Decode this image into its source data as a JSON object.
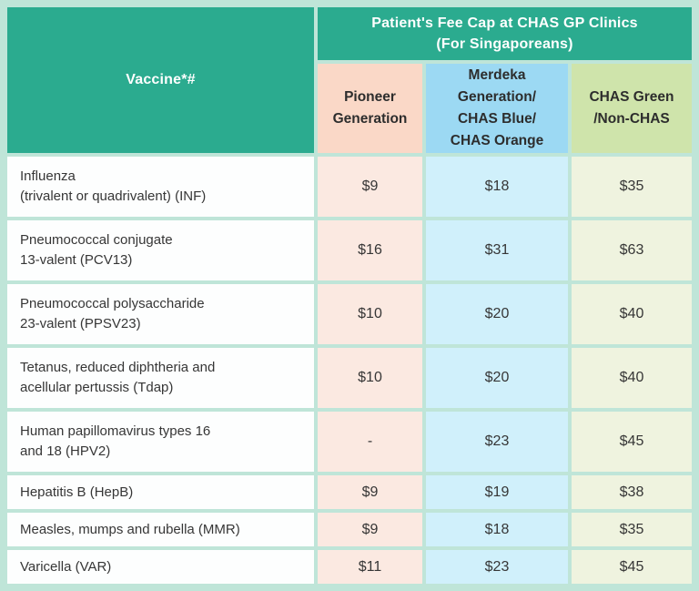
{
  "chart_data": {
    "type": "table",
    "title": "Patient's Fee Cap at CHAS GP Clinics (For Singaporeans)",
    "row_header": "Vaccine*#",
    "columns": [
      "Pioneer Generation",
      "Merdeka Generation/ CHAS Blue/ CHAS Orange",
      "CHAS Green /Non-CHAS"
    ],
    "rows": [
      {
        "vaccine": "Influenza (trivalent or quadrivalent) (INF)",
        "values": [
          "$9",
          "$18",
          "$35"
        ]
      },
      {
        "vaccine": "Pneumococcal conjugate 13-valent (PCV13)",
        "values": [
          "$16",
          "$31",
          "$63"
        ]
      },
      {
        "vaccine": "Pneumococcal polysaccharide 23-valent (PPSV23)",
        "values": [
          "$10",
          "$20",
          "$40"
        ]
      },
      {
        "vaccine": "Tetanus, reduced diphtheria and acellular pertussis (Tdap)",
        "values": [
          "$10",
          "$20",
          "$40"
        ]
      },
      {
        "vaccine": "Human papillomavirus types 16 and 18 (HPV2)",
        "values": [
          "-",
          "$23",
          "$45"
        ]
      },
      {
        "vaccine": "Hepatitis B (HepB)",
        "values": [
          "$9",
          "$19",
          "$38"
        ]
      },
      {
        "vaccine": "Measles, mumps and rubella (MMR)",
        "values": [
          "$9",
          "$18",
          "$35"
        ]
      },
      {
        "vaccine": "Varicella  (VAR)",
        "values": [
          "$11",
          "$23",
          "$45"
        ]
      }
    ]
  },
  "table": {
    "title": "Patient's Fee Cap at CHAS GP Clinics\n(For Singaporeans)",
    "vaccine_header": "Vaccine*#",
    "columns": [
      {
        "label": "Pioneer\nGeneration"
      },
      {
        "label": "Merdeka\nGeneration/\nCHAS Blue/\nCHAS Orange"
      },
      {
        "label": "CHAS Green\n/Non-CHAS"
      }
    ],
    "rows": [
      {
        "vaccine": "Influenza\n(trivalent or quadrivalent) (INF)",
        "pioneer": "$9",
        "merdeka": "$18",
        "chas_green": "$35"
      },
      {
        "vaccine": "Pneumococcal conjugate\n13-valent (PCV13)",
        "pioneer": "$16",
        "merdeka": "$31",
        "chas_green": "$63"
      },
      {
        "vaccine": "Pneumococcal polysaccharide\n23-valent (PPSV23)",
        "pioneer": "$10",
        "merdeka": "$20",
        "chas_green": "$40"
      },
      {
        "vaccine": "Tetanus, reduced diphtheria and\nacellular pertussis (Tdap)",
        "pioneer": "$10",
        "merdeka": "$20",
        "chas_green": "$40"
      },
      {
        "vaccine": "Human papillomavirus types 16\nand 18 (HPV2)",
        "pioneer": "-",
        "merdeka": "$23",
        "chas_green": "$45"
      },
      {
        "vaccine": "Hepatitis B (HepB)",
        "pioneer": "$9",
        "merdeka": "$19",
        "chas_green": "$38"
      },
      {
        "vaccine": "Measles, mumps and rubella (MMR)",
        "pioneer": "$9",
        "merdeka": "$18",
        "chas_green": "$35"
      },
      {
        "vaccine": "Varicella  (VAR)",
        "pioneer": "$11",
        "merdeka": "$23",
        "chas_green": "$45"
      }
    ]
  },
  "colors": {
    "teal": "#2BAB8F",
    "mint_border": "#BFE5D8",
    "header_text": "#FFFFFF",
    "dark_text": "#2D2D2D",
    "body_text": "#363636",
    "white_cell_bg": "#FDFEFE",
    "pioneer_header_bg": "#FAD8C7",
    "merdeka_header_bg": "#9CD9F3",
    "chas_green_header_bg": "#CFE4AB",
    "pioneer_cell_bg": "#FBE9E1",
    "merdeka_cell_bg": "#D0F0FB",
    "chas_green_cell_bg": "#EFF3DF"
  }
}
